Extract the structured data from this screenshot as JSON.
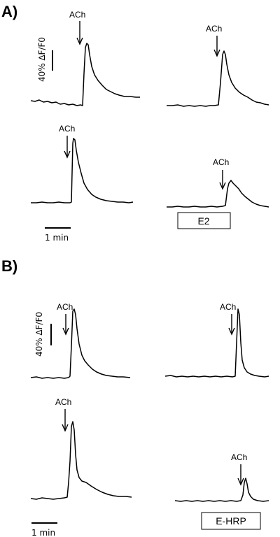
{
  "panels": [
    {
      "letter": "A)"
    },
    {
      "letter": "B)"
    }
  ],
  "labels": {
    "stimulus": "ACh",
    "amplitude_scale": "40% ∆F/F0",
    "time_scale": "1 min",
    "condition_a": "E2",
    "condition_b": "E-HRP"
  },
  "colors": {
    "trace": "#000000",
    "background": "#ffffff"
  }
}
